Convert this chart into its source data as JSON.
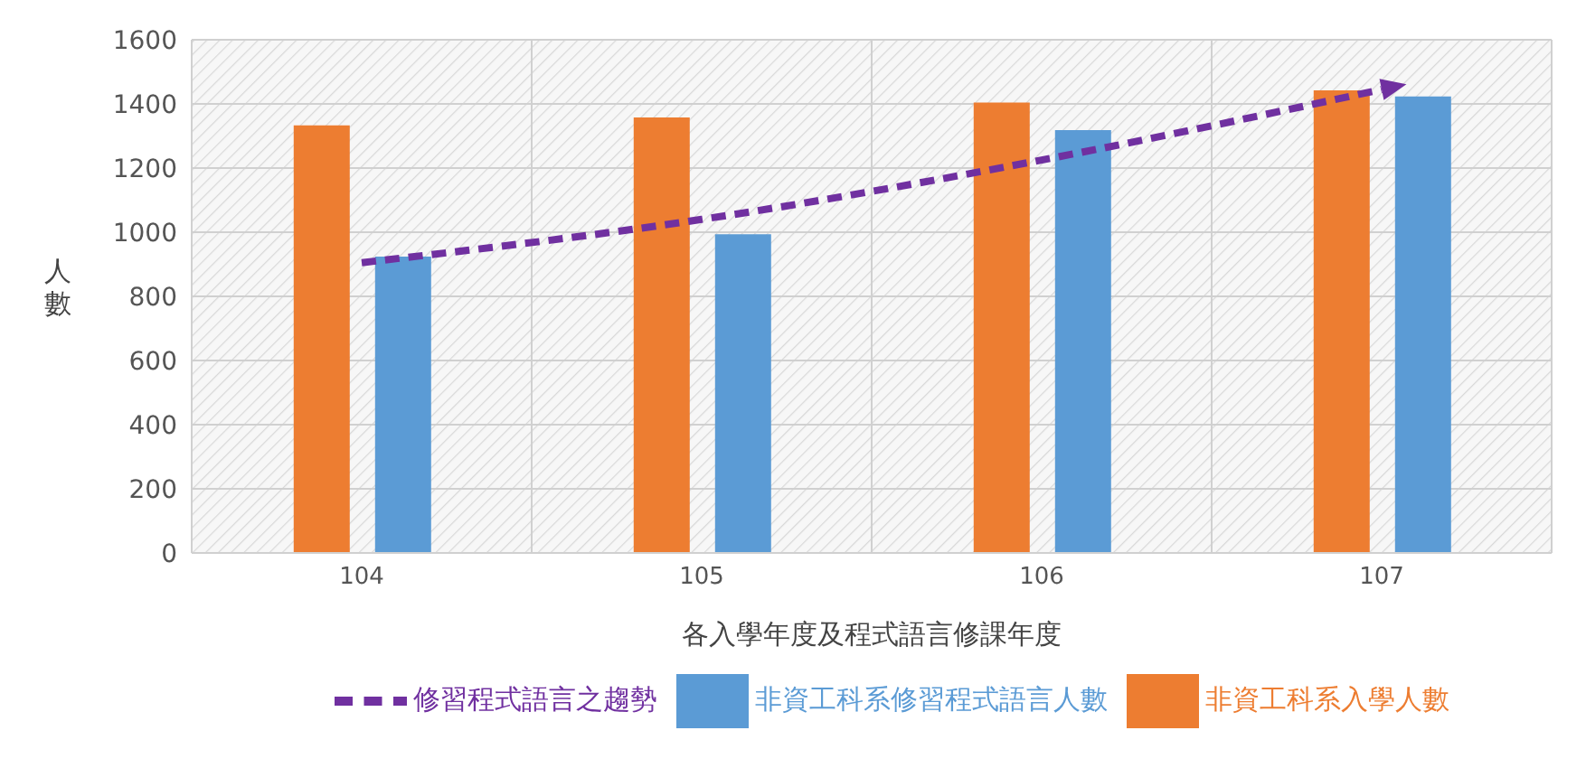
{
  "chart_data": {
    "type": "bar",
    "xlabel": "各入學年度及程式語言修課年度",
    "ylabel": "人數",
    "categories": [
      "104",
      "105",
      "106",
      "107"
    ],
    "series": [
      {
        "name": "非資工科系入學人數",
        "color": "#ed7d31",
        "values": [
          1333,
          1358,
          1404,
          1442
        ]
      },
      {
        "name": "非資工科系修習程式語言人數",
        "color": "#5b9bd5",
        "values": [
          924,
          994,
          1318,
          1423
        ]
      },
      {
        "name": "修習程式語言之趨勢",
        "type": "line",
        "color": "#7030a0",
        "values": [
          905,
          1040,
          1225,
          1445
        ]
      }
    ],
    "ylim": [
      0,
      1600
    ],
    "yticks": [
      0,
      200,
      400,
      600,
      800,
      1000,
      1200,
      1400,
      1600
    ],
    "grid": true,
    "legend": "bottom",
    "line_style": "dashed"
  }
}
